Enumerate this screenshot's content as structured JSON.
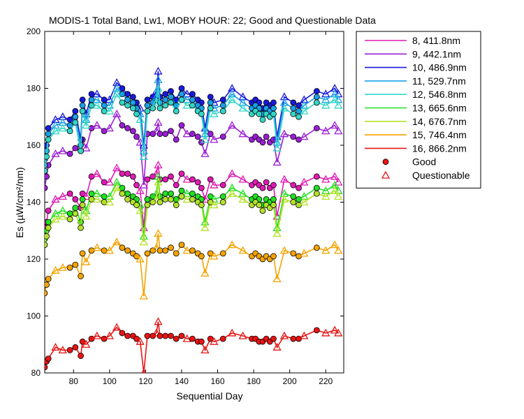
{
  "chart_data": {
    "type": "line",
    "title": "MODIS-1 Total Band,  Lw1, MOBY HOUR: 22;  Good and Questionable Data",
    "xlabel": "Sequential Day",
    "ylabel": "Es (µW/cm²/nm)",
    "xlim": [
      64,
      230
    ],
    "ylim": [
      80,
      200
    ],
    "xticks": [
      80,
      100,
      120,
      140,
      160,
      180,
      200,
      220
    ],
    "yticks": [
      80,
      100,
      120,
      140,
      160,
      180,
      200
    ],
    "grid": false,
    "legend_position": "outside-right",
    "marker_legend": [
      {
        "label": "Good",
        "marker": "circle"
      },
      {
        "label": "Questionable",
        "marker": "triangle"
      }
    ],
    "x": [
      64,
      65,
      66,
      70,
      74,
      78,
      81,
      84,
      85,
      87,
      90,
      93,
      97,
      100,
      104,
      107,
      110,
      113,
      115,
      117,
      119,
      121,
      124,
      126,
      127,
      128,
      131,
      134,
      137,
      140,
      143,
      146,
      149,
      151,
      153,
      156,
      158,
      163,
      168,
      174,
      179,
      181,
      183,
      185,
      187,
      189,
      191,
      193,
      197,
      202,
      205,
      208,
      215,
      220,
      225,
      227
    ],
    "questionable": [
      false,
      false,
      false,
      true,
      true,
      false,
      false,
      false,
      false,
      true,
      false,
      true,
      false,
      true,
      true,
      false,
      false,
      false,
      false,
      true,
      true,
      false,
      false,
      true,
      true,
      false,
      false,
      false,
      false,
      false,
      true,
      false,
      false,
      false,
      true,
      false,
      true,
      false,
      true,
      true,
      false,
      false,
      false,
      false,
      false,
      false,
      false,
      true,
      true,
      false,
      false,
      true,
      false,
      true,
      true,
      true
    ],
    "series": [
      {
        "name": "8, 411.8nm",
        "color": "#e01ab3",
        "values": [
          131,
          133,
          137,
          141,
          142,
          143,
          141,
          138,
          143,
          142,
          149,
          150,
          147,
          147,
          152,
          150,
          150,
          149,
          146,
          144,
          131,
          148,
          149,
          150,
          153,
          148,
          148,
          149,
          146,
          150,
          148,
          148,
          147,
          145,
          141,
          148,
          146,
          146,
          150,
          148,
          146,
          147,
          146,
          145,
          147,
          145,
          146,
          135,
          148,
          146,
          145,
          147,
          149,
          148,
          149,
          147
        ]
      },
      {
        "name": "9, 442.1nm",
        "color": "#9b1fd6",
        "values": [
          145,
          149,
          153,
          157,
          158,
          157,
          159,
          158,
          162,
          159,
          166,
          167,
          165,
          166,
          171,
          167,
          166,
          165,
          163,
          161,
          146,
          164,
          164,
          165,
          168,
          164,
          164,
          165,
          162,
          167,
          164,
          164,
          163,
          161,
          157,
          164,
          162,
          163,
          167,
          164,
          162,
          163,
          162,
          161,
          163,
          161,
          162,
          154,
          164,
          163,
          162,
          163,
          166,
          165,
          167,
          165
        ]
      },
      {
        "name": "10, 486.9nm",
        "color": "#1a1adc",
        "values": [
          155,
          160,
          166,
          169,
          170,
          169,
          172,
          162,
          176,
          171,
          178,
          178,
          176,
          176,
          182,
          180,
          178,
          177,
          175,
          173,
          160,
          176,
          177,
          179,
          186,
          177,
          178,
          179,
          176,
          180,
          178,
          178,
          176,
          175,
          166,
          177,
          175,
          176,
          180,
          177,
          175,
          176,
          175,
          173,
          175,
          174,
          175,
          163,
          177,
          175,
          174,
          176,
          179,
          178,
          180,
          178
        ]
      },
      {
        "name": "11, 529.7nm",
        "color": "#1aa0e6",
        "values": [
          153,
          158,
          164,
          167,
          168,
          167,
          170,
          160,
          174,
          169,
          176,
          176,
          174,
          174,
          180,
          178,
          176,
          175,
          173,
          171,
          158,
          174,
          175,
          177,
          183,
          175,
          176,
          177,
          174,
          178,
          176,
          176,
          174,
          173,
          164,
          175,
          173,
          174,
          178,
          175,
          173,
          174,
          173,
          171,
          173,
          172,
          173,
          161,
          175,
          173,
          172,
          174,
          177,
          176,
          178,
          176
        ]
      },
      {
        "name": "12, 546.8nm",
        "color": "#33d6c6",
        "values": [
          151,
          156,
          162,
          165,
          166,
          165,
          168,
          158,
          172,
          167,
          174,
          174,
          172,
          172,
          178,
          175,
          174,
          173,
          171,
          169,
          156,
          172,
          173,
          175,
          180,
          173,
          174,
          175,
          172,
          176,
          174,
          174,
          172,
          171,
          162,
          173,
          171,
          172,
          176,
          173,
          171,
          172,
          171,
          169,
          171,
          170,
          171,
          159,
          173,
          171,
          170,
          172,
          175,
          174,
          176,
          174
        ]
      },
      {
        "name": "13, 665.6nm",
        "color": "#22e022",
        "values": [
          127,
          130,
          133,
          136,
          137,
          136,
          138,
          133,
          141,
          137,
          143,
          143,
          142,
          142,
          147,
          145,
          143,
          142,
          141,
          139,
          128,
          141,
          142,
          143,
          149,
          142,
          143,
          143,
          141,
          144,
          143,
          143,
          142,
          141,
          133,
          142,
          141,
          142,
          145,
          143,
          141,
          142,
          141,
          139,
          141,
          140,
          141,
          131,
          143,
          142,
          141,
          142,
          145,
          144,
          146,
          144
        ]
      },
      {
        "name": "14, 676.7nm",
        "color": "#b4e12a",
        "values": [
          125,
          128,
          131,
          134,
          135,
          134,
          136,
          131,
          139,
          135,
          141,
          141,
          140,
          140,
          145,
          143,
          141,
          140,
          139,
          137,
          126,
          139,
          140,
          141,
          147,
          140,
          141,
          141,
          139,
          142,
          141,
          141,
          140,
          139,
          131,
          140,
          139,
          140,
          143,
          141,
          139,
          140,
          139,
          137,
          139,
          138,
          139,
          129,
          141,
          140,
          139,
          140,
          143,
          142,
          144,
          142
        ]
      },
      {
        "name": "15, 746.4nm",
        "color": "#f5a300",
        "values": [
          108,
          111,
          113,
          116,
          117,
          117,
          118,
          114,
          122,
          119,
          123,
          124,
          123,
          123,
          126,
          124,
          123,
          122,
          121,
          120,
          107,
          122,
          123,
          124,
          129,
          123,
          123,
          124,
          122,
          125,
          123,
          123,
          122,
          121,
          115,
          122,
          121,
          122,
          125,
          123,
          121,
          122,
          121,
          120,
          121,
          120,
          121,
          113,
          123,
          122,
          121,
          122,
          124,
          123,
          125,
          123
        ]
      },
      {
        "name": "16, 866.2nm",
        "color": "#e81414",
        "values": [
          82,
          84,
          85,
          89,
          88,
          88,
          89,
          86,
          91,
          90,
          92,
          93,
          92,
          93,
          96,
          94,
          93,
          93,
          92,
          91,
          80,
          93,
          93,
          94,
          98,
          93,
          93,
          93,
          92,
          93,
          92,
          92,
          91,
          91,
          88,
          92,
          91,
          92,
          94,
          93,
          92,
          92,
          91,
          91,
          92,
          91,
          92,
          89,
          93,
          92,
          92,
          93,
          95,
          94,
          95,
          94
        ]
      }
    ]
  }
}
